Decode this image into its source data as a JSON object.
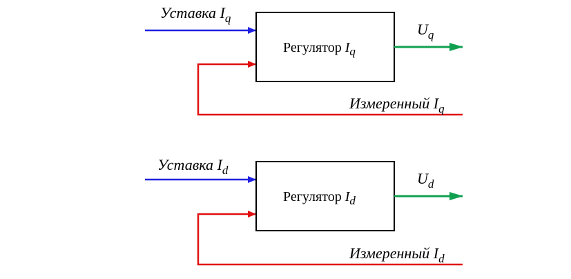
{
  "colors": {
    "setpoint": "#2020e0",
    "feedback": "#e01010",
    "output": "#10a050",
    "block_border": "#000000"
  },
  "top": {
    "setpoint_label": "Уставка",
    "setpoint_var": "I",
    "setpoint_sub": "q",
    "block_label": "Регулятор",
    "block_var": "I",
    "block_sub": "q",
    "output_var": "U",
    "output_sub": "q",
    "measured_label": "Измеренный",
    "measured_var": "I",
    "measured_sub": "q"
  },
  "bottom": {
    "setpoint_label": "Уставка",
    "setpoint_var": "I",
    "setpoint_sub": "d",
    "block_label": "Регулятор",
    "block_var": "I",
    "block_sub": "d",
    "output_var": "U",
    "output_sub": "d",
    "measured_label": "Измеренный",
    "measured_var": "I",
    "measured_sub": "d"
  }
}
